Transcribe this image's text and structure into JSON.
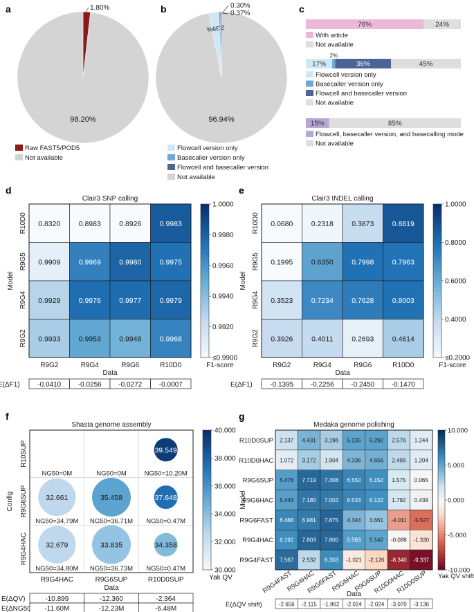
{
  "panel_letters": {
    "a": "a",
    "b": "b",
    "c": "c",
    "d": "d",
    "e": "e",
    "f": "f",
    "g": "g"
  },
  "chart_data": [
    {
      "panel": "a",
      "type": "pie",
      "slices": [
        {
          "label": "Raw FAST5/POD5",
          "value": 1.8,
          "text": "1.80%",
          "color": "#8b1a1a"
        },
        {
          "label": "Not available",
          "value": 98.2,
          "text": "98.20%",
          "color": "#d4d4d4"
        }
      ]
    },
    {
      "panel": "b",
      "type": "pie",
      "slices": [
        {
          "label": "Flowcell version only",
          "value": 2.39,
          "text": "2.39%",
          "color": "#cfe8f5"
        },
        {
          "label": "Basecaller version only",
          "value": 0.37,
          "text": "0.37%",
          "color": "#6fa8d6"
        },
        {
          "label": "Flowcell and basecaller version",
          "value": 0.3,
          "text": "0.30%",
          "color": "#4a5d96"
        },
        {
          "label": "Not available",
          "value": 96.94,
          "text": "96.94%",
          "color": "#d4d4d4"
        }
      ]
    },
    {
      "panel": "c",
      "type": "bar",
      "orientation": "horizontal-stacked",
      "bars": [
        {
          "segments": [
            {
              "label": "With article",
              "value": 76,
              "text": "76%",
              "color": "#ebb8d6"
            },
            {
              "label": "Not available",
              "value": 24,
              "text": "24%",
              "color": "#dedede"
            }
          ]
        },
        {
          "segments": [
            {
              "label": "Flowcell version only",
              "value": 17,
              "text": "17%",
              "color": "#cfe8f5"
            },
            {
              "label": "Basecaller version only",
              "value": 2,
              "text": "2%",
              "color": "#6fa8d6"
            },
            {
              "label": "Flowcell and basecaller version",
              "value": 36,
              "text": "36%",
              "color": "#4a6496"
            },
            {
              "label": "Not available",
              "value": 45,
              "text": "45%",
              "color": "#dedede"
            }
          ]
        },
        {
          "segments": [
            {
              "label": "Flowcell, basecaller version, and basecalling mode",
              "value": 15,
              "text": "15%",
              "color": "#b7a8d6"
            },
            {
              "label": "Not available",
              "value": 85,
              "text": "85%",
              "color": "#dedede"
            }
          ]
        }
      ]
    },
    {
      "panel": "d",
      "type": "heatmap",
      "title": "Clair3 SNP calling",
      "xlabel": "Data",
      "ylabel": "Model",
      "x": [
        "R9G2",
        "R9G4",
        "R9G6",
        "R10D0"
      ],
      "y": [
        "R10D0",
        "R9G5",
        "R9G4",
        "R9G2"
      ],
      "values": [
        [
          "0.8320",
          "0.8983",
          "0.8926",
          "0.9983"
        ],
        [
          "0.9909",
          "0.9969",
          "0.9980",
          "0.9975"
        ],
        [
          "0.9929",
          "0.9976",
          "0.9977",
          "0.9979"
        ],
        [
          "0.9933",
          "0.9953",
          "0.9948",
          "0.9968"
        ]
      ],
      "vmin": 0.99,
      "vmax": 1.0,
      "colorbar_ticks": [
        "1.0000",
        "0.9980",
        "0.9960",
        "0.9940",
        "0.9920",
        "≤0.9900"
      ],
      "colorbar_label": "F1-score",
      "summary_label": "E(ΔF1)",
      "summary": [
        "-0.0410",
        "-0.0256",
        "-0.0272",
        "-0.0007"
      ]
    },
    {
      "panel": "e",
      "type": "heatmap",
      "title": "Clair3 INDEL calling",
      "xlabel": "Data",
      "ylabel": "Model",
      "x": [
        "R9G2",
        "R9G4",
        "R9G6",
        "R10D0"
      ],
      "y": [
        "R10D0",
        "R9G5",
        "R9G4",
        "R9G2"
      ],
      "values": [
        [
          "0.0680",
          "0.2318",
          "0.3873",
          "0.8819"
        ],
        [
          "0.1995",
          "0.6350",
          "0.7998",
          "0.7963"
        ],
        [
          "0.3523",
          "0.7234",
          "0.7628",
          "0.8003"
        ],
        [
          "0.3926",
          "0.4011",
          "0.2693",
          "0.4614"
        ]
      ],
      "vmin": 0.2,
      "vmax": 1.0,
      "colorbar_ticks": [
        "1.0000",
        "0.8000",
        "0.6000",
        "0.4000",
        "≤0.2000"
      ],
      "colorbar_label": "F1-score",
      "summary_label": "E(ΔF1)",
      "summary": [
        "-0.1395",
        "-0.2256",
        "-0.2450",
        "-0.1470"
      ]
    },
    {
      "panel": "f",
      "type": "scatter",
      "title": "Shasta genome assembly",
      "xlabel": "Data",
      "ylabel": "Config",
      "x": [
        "R9G4HAC",
        "R9G6SUP",
        "R10D0SUP"
      ],
      "y": [
        "R10SUP",
        "R9G6SUP",
        "R9G4HAC"
      ],
      "values": [
        [
          null,
          null,
          "39.549"
        ],
        [
          "32.661",
          "35.458",
          "37.648"
        ],
        [
          "32.679",
          "33.835",
          "34.358"
        ]
      ],
      "ng50": [
        [
          "NG50=0M",
          "NG50=0M",
          "NG50=10.20M"
        ],
        [
          "NG50=34.79M",
          "NG50=36.71M",
          "NG50=0.47M"
        ],
        [
          "NG50=34.80M",
          "NG50=36.73M",
          "NG50=0.47M"
        ]
      ],
      "ng50_values": [
        [
          0,
          0,
          10.2
        ],
        [
          34.79,
          36.71,
          0.47
        ],
        [
          34.8,
          36.73,
          0.47
        ]
      ],
      "vmin": 30,
      "vmax": 40,
      "colorbar_ticks": [
        "40.000",
        "38.000",
        "36.000",
        "34.000",
        "32.000",
        "30.000"
      ],
      "colorbar_label": "Yak QV",
      "summary_rows": [
        {
          "label": "E(ΔQV)",
          "values": [
            "-10.899",
            "-12.360",
            "-2.364"
          ]
        },
        {
          "label": "E(ΔNG50)",
          "values": [
            "-11.60M",
            "-12.23M",
            "-6.48M"
          ]
        }
      ]
    },
    {
      "panel": "g",
      "type": "heatmap",
      "title": "Medaka genome polishing",
      "xlabel": "Data",
      "ylabel": "Model",
      "x": [
        "R9G4FAST",
        "R9G4HAC",
        "R9G6FAST",
        "R9G6HAC",
        "R9G6SUP",
        "R10D0HAC",
        "R10D0SUP"
      ],
      "y": [
        "R10D0SUP",
        "R10D0HAC",
        "R9G6SUP",
        "R9G6HAC",
        "R9G6FAST",
        "R9G4HAC",
        "R9G4FAST"
      ],
      "values": [
        [
          "2.137",
          "4.431",
          "3.196",
          "5.235",
          "5.292",
          "2.576",
          "1.244"
        ],
        [
          "1.072",
          "3.172",
          "1.904",
          "4.336",
          "4.656",
          "2.499",
          "1.204"
        ],
        [
          "5.478",
          "7.719",
          "7.308",
          "6.550",
          "6.152",
          "1.575",
          "0.065"
        ],
        [
          "5.443",
          "7.180",
          "7.002",
          "6.533",
          "6.122",
          "1.792",
          "0.439"
        ],
        [
          "6.488",
          "6.981",
          "7.875",
          "4.344",
          "3.661",
          "-4.011",
          "-5.527"
        ],
        [
          "6.192",
          "7.803",
          "7.800",
          "5.583",
          "5.142",
          "-0.088",
          "-1.330"
        ],
        [
          "7.567",
          "2.532",
          "6.303",
          "-1.021",
          "-2.126",
          "-8.340",
          "-9.337"
        ]
      ],
      "vmin": -10,
      "vmax": 10,
      "colorbar_ticks": [
        "10.000",
        "5.000",
        "0.000",
        "-5.000",
        "-10.000"
      ],
      "colorbar_label": "Yak QV shift",
      "summary_label": "E(ΔQV shift)",
      "summary": [
        "-2.656",
        "-2.115",
        "-1.962",
        "-2.024",
        "-2.024",
        "-3.070",
        "-3.136"
      ]
    }
  ]
}
